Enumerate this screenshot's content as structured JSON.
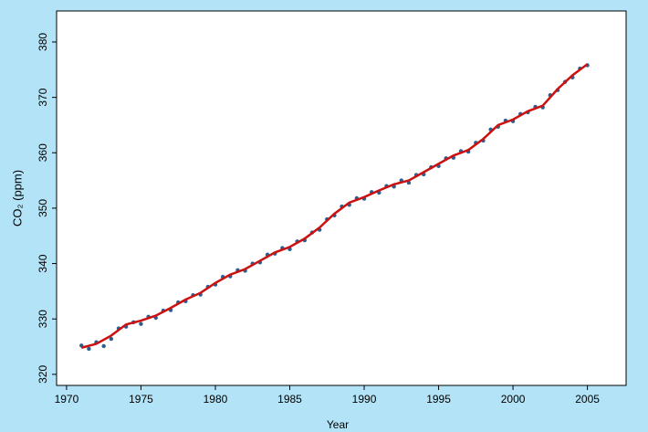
{
  "chart_data": {
    "type": "scatter",
    "x_label": "Year",
    "y_label": "CO₂ (ppm)",
    "xlim": [
      1969.33,
      2007.6
    ],
    "ylim": [
      318.0,
      385.6
    ],
    "xticks": [
      1970,
      1975,
      1980,
      1985,
      1990,
      1995,
      2000,
      2005
    ],
    "yticks": [
      320,
      330,
      340,
      350,
      360,
      370,
      380
    ],
    "series": [
      {
        "mode": "markers",
        "color": "#2b5f8f",
        "x": [
          1971.0,
          1971.5,
          1972.0,
          1972.5,
          1973.0,
          1973.5,
          1974.0,
          1974.5,
          1975.0,
          1975.5,
          1976.0,
          1976.5,
          1977.0,
          1977.5,
          1978.0,
          1978.5,
          1979.0,
          1979.5,
          1980.0,
          1980.5,
          1981.0,
          1981.5,
          1982.0,
          1982.5,
          1983.0,
          1983.5,
          1984.0,
          1984.5,
          1985.0,
          1985.5,
          1986.0,
          1986.5,
          1987.0,
          1987.5,
          1988.0,
          1988.5,
          1989.0,
          1989.5,
          1990.0,
          1990.5,
          1991.0,
          1991.5,
          1992.0,
          1992.5,
          1993.0,
          1993.5,
          1994.0,
          1994.5,
          1995.0,
          1995.5,
          1996.0,
          1996.5,
          1997.0,
          1997.5,
          1998.0,
          1998.5,
          1999.0,
          1999.5,
          2000.0,
          2000.5,
          2001.0,
          2001.5,
          2002.0,
          2002.5,
          2003.0,
          2003.5,
          2004.0,
          2004.5,
          2005.0
        ],
        "values": [
          325.2,
          324.6,
          325.8,
          325.1,
          326.4,
          328.3,
          328.6,
          329.4,
          329.1,
          330.4,
          330.2,
          331.5,
          331.6,
          333.0,
          333.2,
          334.3,
          334.4,
          335.8,
          336.2,
          337.6,
          337.7,
          338.8,
          338.7,
          340.0,
          340.2,
          341.6,
          341.8,
          342.8,
          342.6,
          344.0,
          344.2,
          345.6,
          346.1,
          348.0,
          348.7,
          350.3,
          350.6,
          351.8,
          351.7,
          352.9,
          352.8,
          354.0,
          353.9,
          355.0,
          354.6,
          356.0,
          356.1,
          357.4,
          357.6,
          359.0,
          359.1,
          360.3,
          360.2,
          361.8,
          362.2,
          364.2,
          364.7,
          365.8,
          365.7,
          367.0,
          367.3,
          368.3,
          368.2,
          370.4,
          371.3,
          372.8,
          373.6,
          375.2,
          375.8
        ]
      },
      {
        "mode": "line",
        "color": "#cc1111",
        "x": [
          1971,
          1972,
          1973,
          1974,
          1975,
          1976,
          1977,
          1978,
          1979,
          1980,
          1981,
          1982,
          1983,
          1984,
          1985,
          1986,
          1987,
          1988,
          1989,
          1990,
          1991,
          1992,
          1993,
          1994,
          1995,
          1996,
          1997,
          1998,
          1999,
          2000,
          2001,
          2002,
          2003,
          2004,
          2005
        ],
        "values": [
          324.8,
          325.5,
          327,
          329,
          329.7,
          330.6,
          332,
          333.5,
          334.7,
          336.5,
          338,
          339,
          340.5,
          342,
          343,
          344.5,
          346.5,
          349,
          351,
          352,
          353.2,
          354.3,
          355,
          356.5,
          358,
          359.5,
          360.5,
          362.5,
          365,
          366,
          367.5,
          368.5,
          371.5,
          374,
          376
        ]
      }
    ]
  }
}
